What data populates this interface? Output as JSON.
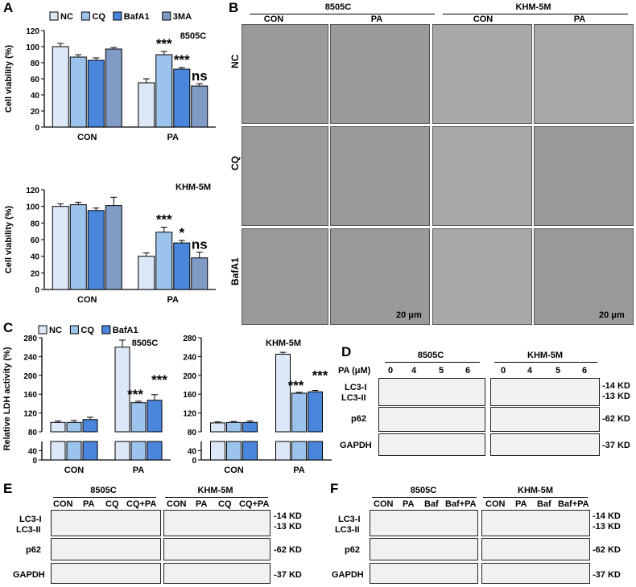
{
  "panel_labels": {
    "A": "A",
    "B": "B",
    "C": "C",
    "D": "D",
    "E": "E",
    "F": "F"
  },
  "colors": {
    "NC": "#dce8f7",
    "CQ": "#9cc3ec",
    "BafA1": "#4a86dc",
    "3MA": "#7f9bc6"
  },
  "chart_data": [
    {
      "type": "bar",
      "id": "A-top",
      "title": "8505C",
      "ylabel": "Cell viability (%)",
      "ylim": [
        0,
        120
      ],
      "yticks": [
        0,
        20,
        40,
        60,
        80,
        100,
        120
      ],
      "categories": [
        "CON",
        "PA"
      ],
      "legend": [
        "NC",
        "CQ",
        "BafA1",
        "3MA"
      ],
      "series": [
        {
          "name": "NC",
          "values": [
            100,
            55
          ],
          "err": [
            4,
            5
          ]
        },
        {
          "name": "CQ",
          "values": [
            87,
            90
          ],
          "err": [
            3,
            4
          ]
        },
        {
          "name": "BafA1",
          "values": [
            83,
            72
          ],
          "err": [
            3,
            2
          ]
        },
        {
          "name": "3MA",
          "values": [
            97,
            51
          ],
          "err": [
            2,
            3
          ]
        }
      ],
      "annotations": [
        [
          null,
          "***"
        ],
        [
          null,
          "***"
        ],
        [
          null,
          "ns"
        ]
      ]
    },
    {
      "type": "bar",
      "id": "A-bottom",
      "title": "KHM-5M",
      "ylabel": "Cell viability (%)",
      "ylim": [
        0,
        120
      ],
      "yticks": [
        0,
        20,
        40,
        60,
        80,
        100,
        120
      ],
      "categories": [
        "CON",
        "PA"
      ],
      "series": [
        {
          "name": "NC",
          "values": [
            100,
            40
          ],
          "err": [
            3,
            4
          ]
        },
        {
          "name": "CQ",
          "values": [
            102,
            69
          ],
          "err": [
            3,
            6
          ]
        },
        {
          "name": "BafA1",
          "values": [
            95,
            56
          ],
          "err": [
            3,
            3
          ]
        },
        {
          "name": "3MA",
          "values": [
            101,
            38
          ],
          "err": [
            10,
            7
          ]
        }
      ],
      "annotations": [
        [
          null,
          "***"
        ],
        [
          null,
          "*"
        ],
        [
          null,
          "ns"
        ]
      ]
    },
    {
      "type": "bar",
      "id": "C-left",
      "title": "8505C",
      "ylabel": "Relative LDH activity (%)",
      "ylim": [
        0,
        280
      ],
      "yticks": [
        0,
        40,
        80,
        120,
        160,
        200,
        240,
        280
      ],
      "categories": [
        "CON",
        "PA"
      ],
      "legend": [
        "NC",
        "CQ",
        "BafA1"
      ],
      "series": [
        {
          "name": "NC",
          "values": [
            100,
            260
          ],
          "err": [
            3,
            15
          ]
        },
        {
          "name": "CQ",
          "values": [
            100,
            142
          ],
          "err": [
            4,
            3
          ]
        },
        {
          "name": "BafA1",
          "values": [
            106,
            147
          ],
          "err": [
            5,
            12
          ]
        }
      ],
      "annotations": [
        [
          null,
          "***"
        ],
        [
          null,
          "***"
        ]
      ]
    },
    {
      "type": "bar",
      "id": "C-right",
      "title": "KHM-5M",
      "ylabel": "",
      "ylim": [
        0,
        280
      ],
      "yticks": [
        0,
        40,
        80,
        120,
        160,
        200,
        240,
        280
      ],
      "categories": [
        "CON",
        "PA"
      ],
      "series": [
        {
          "name": "NC",
          "values": [
            99,
            245
          ],
          "err": [
            2,
            4
          ]
        },
        {
          "name": "CQ",
          "values": [
            100,
            162
          ],
          "err": [
            2,
            2
          ]
        },
        {
          "name": "BafA1",
          "values": [
            100,
            165
          ],
          "err": [
            3,
            3
          ]
        }
      ],
      "annotations": [
        [
          null,
          "***"
        ],
        [
          null,
          "***"
        ]
      ]
    }
  ],
  "panelB": {
    "headers": [
      "8505C",
      "KHM-5M"
    ],
    "subheaders": [
      "CON",
      "PA",
      "CON",
      "PA"
    ],
    "rows": [
      "NC",
      "CQ",
      "BafA1"
    ],
    "scale": "20 μm"
  },
  "panelD": {
    "headers": [
      "8505C",
      "KHM-5M"
    ],
    "axis_label": "PA (μM)",
    "lanes": [
      "0",
      "4",
      "5",
      "6",
      "0",
      "4",
      "5",
      "6"
    ],
    "rows": [
      "LC3-I\nLC3-II",
      "p62",
      "GAPDH"
    ],
    "kd": [
      "-14 KD",
      "-13 KD",
      "-62 KD",
      "-37 KD"
    ]
  },
  "panelE": {
    "headers": [
      "8505C",
      "KHM-5M"
    ],
    "lanes": [
      "CON",
      "PA",
      "CQ",
      "CQ+PA",
      "CON",
      "PA",
      "CQ",
      "CQ+PA"
    ],
    "kd": [
      "-14 KD",
      "-13 KD",
      "-62 KD",
      "-37 KD"
    ]
  },
  "panelF": {
    "headers": [
      "8505C",
      "KHM-5M"
    ],
    "lanes": [
      "CON",
      "PA",
      "Baf",
      "Baf+PA",
      "CON",
      "PA",
      "Baf",
      "Baf+PA"
    ],
    "kd": [
      "-14 KD",
      "-13 KD",
      "-62 KD",
      "-37 KD"
    ]
  },
  "blot_labels": {
    "lc3i": "LC3-I",
    "lc3ii": "LC3-II",
    "p62": "p62",
    "gapdh": "GAPDH"
  }
}
